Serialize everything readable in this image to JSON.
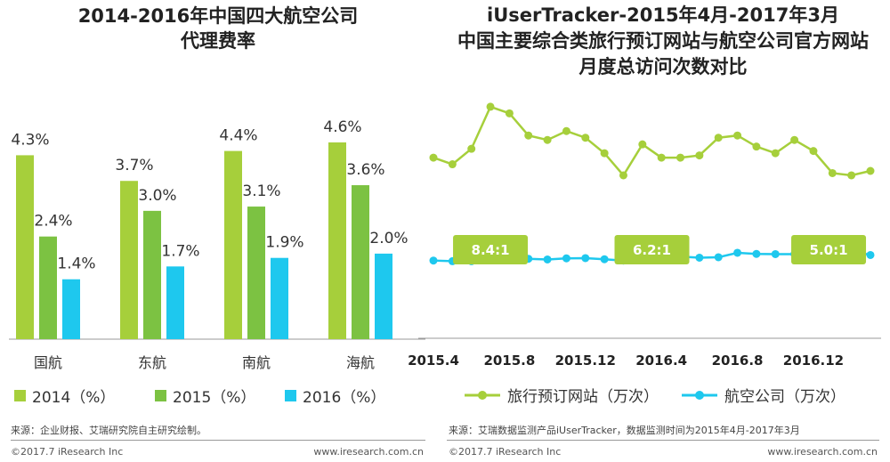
{
  "left": {
    "title_line1": "2014-2016年中国四大航空公司",
    "title_line2": "代理费率",
    "chart_data": {
      "type": "bar",
      "title": "2014-2016年中国四大航空公司代理费率",
      "categories": [
        "国航",
        "东航",
        "南航",
        "海航"
      ],
      "series": [
        {
          "name": "2014（%）",
          "values": [
            4.3,
            3.7,
            4.4,
            4.6
          ],
          "labels": [
            "4.3%",
            "3.7%",
            "4.4%",
            "4.6%"
          ],
          "color": "#a6cf3b"
        },
        {
          "name": "2015（%）",
          "values": [
            2.4,
            3.0,
            3.1,
            3.6
          ],
          "labels": [
            "2.4%",
            "3.0%",
            "3.1%",
            "3.6%"
          ],
          "color": "#7cc242"
        },
        {
          "name": "2016（%）",
          "values": [
            1.4,
            1.7,
            1.9,
            2.0
          ],
          "labels": [
            "1.4%",
            "1.7%",
            "1.9%",
            "2.0%"
          ],
          "color": "#1ec8ee"
        }
      ],
      "ylim": [
        0,
        5
      ]
    },
    "source": "来源：企业财报、艾瑞研究院自主研究绘制。",
    "copyright": "©2017.7 iResearch Inc",
    "url": "www.iresearch.com.cn"
  },
  "right": {
    "title_line1": "iUserTracker-2015年4月-2017年3月",
    "title_line2": "中国主要综合类旅行预订网站与航空公司官方网站",
    "title_line3": "月度总访问次数对比",
    "chart_data": {
      "type": "line",
      "title": "iUserTracker-2015年4月-2017年3月 中国主要综合类旅行预订网站与航空公司官方网站月度总访问次数对比",
      "x": [
        "2015.4",
        "2015.5",
        "2015.6",
        "2015.7",
        "2015.8",
        "2015.9",
        "2015.10",
        "2015.11",
        "2015.12",
        "2016.1",
        "2016.2",
        "2016.3",
        "2016.4",
        "2016.5",
        "2016.6",
        "2016.7",
        "2016.8",
        "2016.9",
        "2016.10",
        "2016.11",
        "2016.12",
        "2017.1",
        "2017.2",
        "2017.3"
      ],
      "x_tick_labels": [
        "2015.4",
        "2015.8",
        "2015.12",
        "2016.4",
        "2016.8",
        "2016.12"
      ],
      "series": [
        {
          "name": "旅行预订网站（万次）",
          "color": "#a6cf3b",
          "values": [
            78,
            75,
            82,
            101,
            98,
            88,
            86,
            90,
            87,
            80,
            70,
            84,
            78,
            78,
            79,
            87,
            88,
            83,
            80,
            86,
            81,
            71,
            70,
            72
          ]
        },
        {
          "name": "航空公司（万次）",
          "color": "#1ec8ee",
          "values": [
            31.5,
            31.2,
            31.2,
            32,
            32.3,
            32.3,
            32,
            32.5,
            32.6,
            32.1,
            31.5,
            33.3,
            32.3,
            33.3,
            32.8,
            33,
            35,
            34.5,
            34.4,
            34.4,
            34.1,
            31.9,
            35.9,
            34
          ]
        }
      ],
      "ratio_labels": [
        "8.4:1",
        "6.2:1",
        "5.0:1"
      ],
      "ylim": [
        0,
        105
      ],
      "grid": false
    },
    "source": "来源：艾瑞数据监测产品iUserTracker，数据监测时间为2015年4月-2017年3月",
    "copyright": "©2017.7 iResearch Inc",
    "url": "www.iresearch.com.cn"
  }
}
